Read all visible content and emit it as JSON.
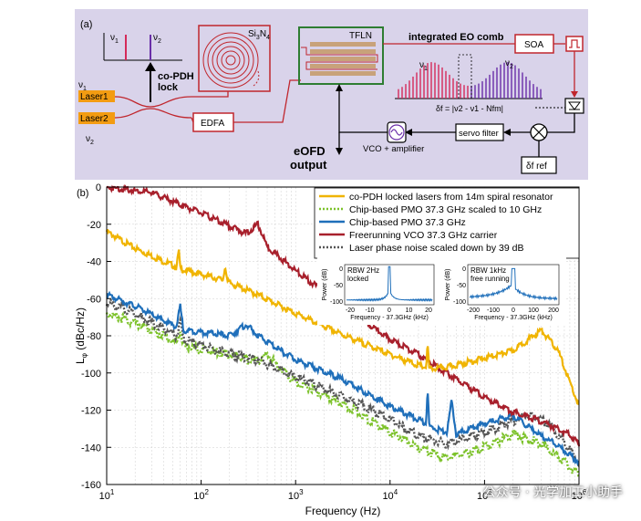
{
  "panel_a": {
    "label": "(a)",
    "nu1": "ν",
    "nu1_sub": "1",
    "nu2": "ν",
    "nu2_sub": "2",
    "lock_label": "co-PDH lock",
    "laser1": "Laser1",
    "laser2": "Laser2",
    "edfa": "EDFA",
    "sin": "Si",
    "sin_sub1": "3",
    "sin_n": "N",
    "sin_sub2": "4",
    "tfln": "TFLN",
    "comb_label": "integrated EO comb",
    "soa": "SOA",
    "formula": "δf = |ν2 - ν1 - Nfm|",
    "servo": "servo filter",
    "vco": "VCO + amplifier",
    "eofd": "eOFD output",
    "dfref": "δf ref",
    "colors": {
      "panel_bg": "#d9d3ea",
      "laser": "#f39c12",
      "red": "#c0262d",
      "green": "#2e7d32",
      "comb": "#6a2ea8",
      "comb_red": "#d42a5a"
    }
  },
  "panel_b_label": "(b)",
  "chart_data": {
    "type": "line",
    "xscale": "log",
    "xlim": [
      10,
      1000000
    ],
    "ylim": [
      -160,
      0
    ],
    "xlabel": "Frequency (Hz)",
    "ylabel": "L_φ (dBc/Hz)",
    "ylabel_main": "L",
    "ylabel_sub": "φ",
    "ylabel_rest": " (dBc/Hz)",
    "xticks": [
      {
        "v": 10,
        "b": "10",
        "e": "1"
      },
      {
        "v": 100,
        "b": "10",
        "e": "2"
      },
      {
        "v": 1000,
        "b": "10",
        "e": "3"
      },
      {
        "v": 10000,
        "b": "10",
        "e": "4"
      },
      {
        "v": 100000,
        "b": "10",
        "e": "5"
      },
      {
        "v": 1000000,
        "b": "10",
        "e": "6"
      }
    ],
    "yticks": [
      0,
      -20,
      -40,
      -60,
      -80,
      -100,
      -120,
      -140,
      -160
    ],
    "grid": true,
    "legend_position": "top-right",
    "series": [
      {
        "name": "co-PDH locked lasers from 14m spiral resonator",
        "color": "#f0b400",
        "dash": "solid",
        "points": [
          [
            10,
            -24
          ],
          [
            20,
            -33
          ],
          [
            40,
            -40
          ],
          [
            55,
            -43
          ],
          [
            58,
            -34
          ],
          [
            60,
            -44
          ],
          [
            100,
            -47
          ],
          [
            170,
            -50
          ],
          [
            180,
            -42
          ],
          [
            190,
            -51
          ],
          [
            400,
            -58
          ],
          [
            1000,
            -68
          ],
          [
            3000,
            -79
          ],
          [
            10000,
            -90
          ],
          [
            20000,
            -96
          ],
          [
            24000,
            -97
          ],
          [
            25000,
            -85
          ],
          [
            26000,
            -98
          ],
          [
            40000,
            -97
          ],
          [
            100000,
            -92
          ],
          [
            200000,
            -88
          ],
          [
            400000,
            -77
          ],
          [
            600000,
            -88
          ],
          [
            1000000,
            -118
          ]
        ]
      },
      {
        "name": "Chip-based PMO 37.3 GHz scaled to 10 GHz",
        "color": "#7cc22a",
        "dash": "dotted",
        "points": [
          [
            10,
            -68
          ],
          [
            20,
            -73
          ],
          [
            40,
            -80
          ],
          [
            55,
            -84
          ],
          [
            60,
            -77
          ],
          [
            65,
            -86
          ],
          [
            100,
            -87
          ],
          [
            200,
            -90
          ],
          [
            400,
            -94
          ],
          [
            500,
            -90
          ],
          [
            1000,
            -105
          ],
          [
            3000,
            -116
          ],
          [
            10000,
            -132
          ],
          [
            20000,
            -140
          ],
          [
            40000,
            -146
          ],
          [
            100000,
            -140
          ],
          [
            200000,
            -133
          ],
          [
            400000,
            -138
          ],
          [
            700000,
            -148
          ],
          [
            1000000,
            -155
          ]
        ]
      },
      {
        "name": "Chip-based PMO 37.3 GHz",
        "color": "#1f6fba",
        "dash": "solid",
        "points": [
          [
            10,
            -58
          ],
          [
            20,
            -64
          ],
          [
            40,
            -72
          ],
          [
            55,
            -75
          ],
          [
            60,
            -64
          ],
          [
            65,
            -77
          ],
          [
            100,
            -78
          ],
          [
            200,
            -80
          ],
          [
            300,
            -74
          ],
          [
            400,
            -80
          ],
          [
            1000,
            -93
          ],
          [
            3000,
            -103
          ],
          [
            10000,
            -118
          ],
          [
            24000,
            -127
          ],
          [
            25000,
            -108
          ],
          [
            26000,
            -129
          ],
          [
            40000,
            -132
          ],
          [
            45000,
            -115
          ],
          [
            50000,
            -133
          ],
          [
            100000,
            -127
          ],
          [
            200000,
            -123
          ],
          [
            400000,
            -134
          ],
          [
            600000,
            -139
          ],
          [
            1000000,
            -148
          ]
        ]
      },
      {
        "name": "Freerunning VCO 37.3 GHz carrier",
        "color": "#a8202c",
        "dash": "solid",
        "points": [
          [
            10,
            0
          ],
          [
            30,
            -3
          ],
          [
            100,
            -14
          ],
          [
            300,
            -25
          ],
          [
            400,
            -20
          ],
          [
            500,
            -32
          ],
          [
            1000,
            -45
          ],
          [
            3000,
            -63
          ],
          [
            10000,
            -82
          ],
          [
            20000,
            -90
          ],
          [
            40000,
            -100
          ],
          [
            100000,
            -113
          ],
          [
            200000,
            -121
          ],
          [
            400000,
            -126
          ],
          [
            800000,
            -133
          ],
          [
            1000000,
            -138
          ]
        ]
      },
      {
        "name": "Laser phase noise scaled down by 39 dB",
        "color": "#555555",
        "dash": "dotted",
        "points": [
          [
            10,
            -62
          ],
          [
            20,
            -68
          ],
          [
            40,
            -76
          ],
          [
            55,
            -80
          ],
          [
            60,
            -73
          ],
          [
            65,
            -82
          ],
          [
            100,
            -85
          ],
          [
            200,
            -90
          ],
          [
            400,
            -93
          ],
          [
            1000,
            -102
          ],
          [
            3000,
            -112
          ],
          [
            10000,
            -125
          ],
          [
            20000,
            -134
          ],
          [
            40000,
            -138
          ],
          [
            100000,
            -132
          ],
          [
            300000,
            -122
          ],
          [
            500000,
            -128
          ],
          [
            1000000,
            -148
          ]
        ]
      }
    ],
    "insets": [
      {
        "label1": "RBW 2Hz",
        "label2": "locked",
        "xlabel": "Frequency - 37.3GHz (kHz)",
        "ylabel": "Power (dB)",
        "xticks": [
          "-20",
          "-10",
          "0",
          "10",
          "20"
        ],
        "yticks": [
          "0",
          "-50",
          "-100"
        ]
      },
      {
        "label1": "RBW 1kHz",
        "label2": "free running",
        "xlabel": "Frequency - 37.3GHz (kHz)",
        "ylabel": "Power (dB)",
        "xticks": [
          "-200",
          "-100",
          "0",
          "100",
          "200"
        ],
        "yticks": [
          "0",
          "-50",
          "-100"
        ]
      }
    ]
  },
  "watermark": "公众号 · 光学加工小助手"
}
